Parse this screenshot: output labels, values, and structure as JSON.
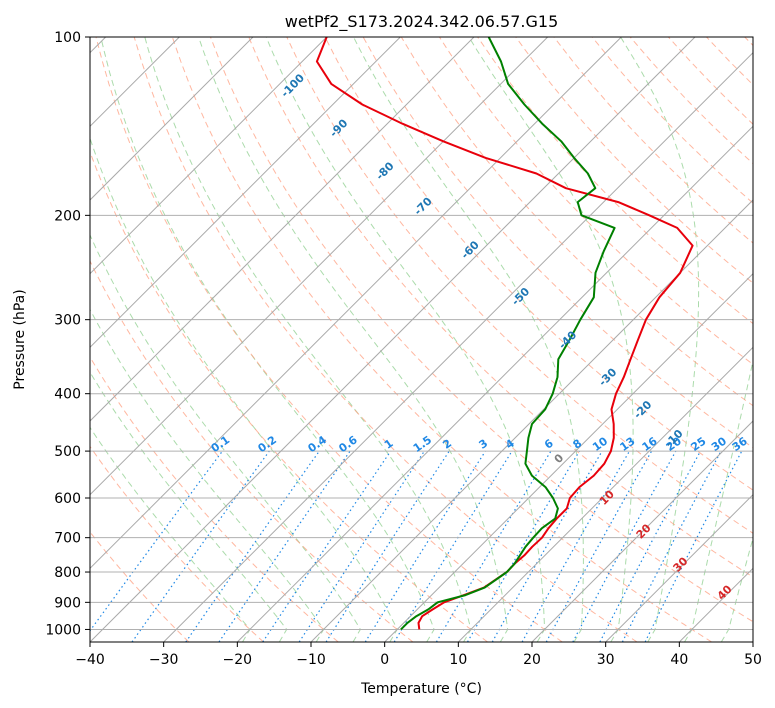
{
  "chart_data": {
    "type": "line",
    "title": "wetPf2_S173.2024.342.06.57.G15",
    "xlabel": "Temperature (°C)",
    "ylabel": "Pressure (hPa)",
    "xlim": [
      -40,
      50
    ],
    "ylim": [
      1050,
      100
    ],
    "y_scale": "log",
    "grid": true,
    "x_ticks": [
      -40,
      -30,
      -20,
      -10,
      0,
      10,
      20,
      30,
      40,
      50
    ],
    "x_tick_labels": [
      "−40",
      "−30",
      "−20",
      "−10",
      "0",
      "10",
      "20",
      "30",
      "40",
      "50"
    ],
    "y_ticks": [
      100,
      200,
      300,
      400,
      500,
      600,
      700,
      800,
      900,
      1000
    ],
    "y_tick_labels": [
      "100",
      "200",
      "300",
      "400",
      "500",
      "600",
      "700",
      "800",
      "900",
      "1000"
    ],
    "colors": {
      "temperature": "#e8000b",
      "dewpoint": "#008000",
      "isotherm": "#aaaaaa",
      "dry_adiabat": "#ff9f80",
      "moist_adiabat": "#8fcf8f",
      "mixing_ratio": "#1f88e5",
      "height_label": "#1f77b4",
      "moist_label": "#d62728",
      "zero_label": "#7f7f7f"
    },
    "series": [
      {
        "key": "temperature",
        "points": [
          [
            3.0,
            1000
          ],
          [
            2.0,
            975
          ],
          [
            1.6,
            950
          ],
          [
            2.1,
            925
          ],
          [
            2.7,
            900
          ],
          [
            4.4,
            875
          ],
          [
            6.1,
            850
          ],
          [
            7.1,
            800
          ],
          [
            7.0,
            775
          ],
          [
            7.2,
            750
          ],
          [
            7.1,
            725
          ],
          [
            7.2,
            700
          ],
          [
            6.8,
            675
          ],
          [
            6.6,
            650
          ],
          [
            6.6,
            625
          ],
          [
            5.6,
            600
          ],
          [
            5.4,
            575
          ],
          [
            5.8,
            550
          ],
          [
            5.6,
            525
          ],
          [
            4.8,
            500
          ],
          [
            3.4,
            475
          ],
          [
            1.5,
            450
          ],
          [
            -0.8,
            425
          ],
          [
            -2.3,
            400
          ],
          [
            -3.5,
            375
          ],
          [
            -5.0,
            350
          ],
          [
            -6.6,
            325
          ],
          [
            -8.3,
            300
          ],
          [
            -9.5,
            275
          ],
          [
            -10.0,
            250
          ],
          [
            -12.0,
            225
          ],
          [
            -16.5,
            210
          ],
          [
            -22.0,
            200
          ],
          [
            -28.0,
            190
          ],
          [
            -37.0,
            180
          ],
          [
            -43.0,
            170
          ],
          [
            -52.0,
            160
          ],
          [
            -60.0,
            150
          ],
          [
            -68.0,
            140
          ],
          [
            -76.0,
            130
          ],
          [
            -83.0,
            120
          ],
          [
            -88.0,
            110
          ],
          [
            -90.0,
            100
          ]
        ]
      },
      {
        "key": "dewpoint",
        "points": [
          [
            0.5,
            1000
          ],
          [
            0.5,
            975
          ],
          [
            0.8,
            950
          ],
          [
            1.5,
            925
          ],
          [
            1.8,
            900
          ],
          [
            4.6,
            875
          ],
          [
            6.2,
            850
          ],
          [
            7.1,
            800
          ],
          [
            7.0,
            775
          ],
          [
            6.6,
            750
          ],
          [
            6.2,
            725
          ],
          [
            6.0,
            700
          ],
          [
            5.9,
            675
          ],
          [
            6.4,
            650
          ],
          [
            5.4,
            625
          ],
          [
            3.3,
            600
          ],
          [
            0.8,
            575
          ],
          [
            -2.6,
            550
          ],
          [
            -5.1,
            525
          ],
          [
            -6.6,
            500
          ],
          [
            -8.2,
            475
          ],
          [
            -9.6,
            450
          ],
          [
            -9.8,
            425
          ],
          [
            -10.9,
            400
          ],
          [
            -12.5,
            375
          ],
          [
            -14.8,
            350
          ],
          [
            -15.9,
            325
          ],
          [
            -17.2,
            300
          ],
          [
            -18.4,
            275
          ],
          [
            -21.5,
            250
          ],
          [
            -23.3,
            230
          ],
          [
            -25.0,
            210
          ],
          [
            -31.2,
            200
          ],
          [
            -33.5,
            190
          ],
          [
            -33.0,
            180
          ],
          [
            -36.0,
            170
          ],
          [
            -40.0,
            160
          ],
          [
            -44.0,
            150
          ],
          [
            -49.0,
            140
          ],
          [
            -54.0,
            130
          ],
          [
            -59.0,
            120
          ],
          [
            -63.0,
            110
          ],
          [
            -68.0,
            100
          ]
        ]
      }
    ],
    "height_labels": [
      {
        "text": "-100",
        "p": 122
      },
      {
        "text": "-90",
        "p": 144
      },
      {
        "text": "-80",
        "p": 170
      },
      {
        "text": "-70",
        "p": 195
      },
      {
        "text": "-60",
        "p": 231
      },
      {
        "text": "-50",
        "p": 277
      },
      {
        "text": "-40",
        "p": 328
      },
      {
        "text": "-30",
        "p": 379
      },
      {
        "text": "-20",
        "p": 430
      },
      {
        "text": "-10",
        "p": 481
      }
    ],
    "mixing_ratio_labels": [
      "0.1",
      "0.2",
      "0.4",
      "0.6",
      "1",
      "1.5",
      "2",
      "3",
      "4",
      "6",
      "8",
      "10",
      "13",
      "16",
      "20",
      "25",
      "30",
      "36"
    ],
    "moist_adiabat_labels": [
      "0",
      "10",
      "20",
      "30",
      "40"
    ]
  }
}
